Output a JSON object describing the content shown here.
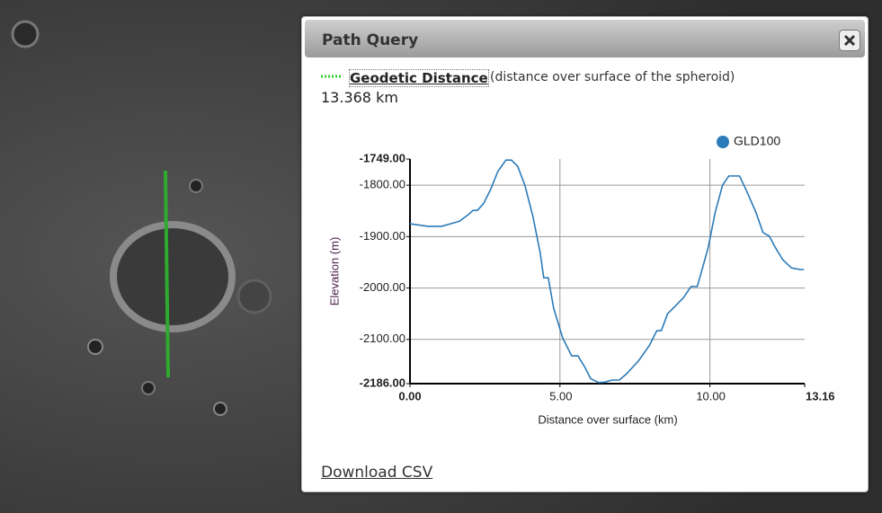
{
  "panel": {
    "title": "Path Query",
    "link": "Geodetic Distance",
    "description": "(distance over surface of the spheroid)",
    "distance": "13.368 km",
    "download": "Download CSV"
  },
  "chart_data": {
    "type": "line",
    "x_label": "Distance over surface (km)",
    "y_label": "Elevation (m)",
    "xlim": [
      0,
      13.16
    ],
    "xticks": [
      {
        "value": 0,
        "label": "0.00"
      },
      {
        "value": 5,
        "label": "5.00"
      },
      {
        "value": 10,
        "label": "10.00"
      },
      {
        "value": 13.16,
        "label": "13.16"
      }
    ],
    "ylim": [
      -2186,
      -1749
    ],
    "yticks": [
      {
        "value": -1749,
        "label": "-1749.00"
      },
      {
        "value": -1800,
        "label": "-1800.00"
      },
      {
        "value": -1900,
        "label": "-1900.00"
      },
      {
        "value": -2000,
        "label": "-2000.00"
      },
      {
        "value": -2100,
        "label": "-2100.00"
      },
      {
        "value": -2186,
        "label": "-2186.00"
      }
    ],
    "grid": true,
    "legend": "top-right",
    "x": [
      0,
      0.6,
      1.05,
      1.35,
      1.65,
      1.95,
      2.1,
      2.25,
      2.46,
      2.69,
      2.93,
      3.2,
      3.38,
      3.59,
      3.83,
      4.1,
      4.34,
      4.46,
      4.61,
      4.79,
      5.09,
      5.39,
      5.6,
      5.84,
      6.02,
      6.29,
      6.5,
      6.74,
      6.98,
      7.22,
      7.63,
      7.99,
      8.23,
      8.38,
      8.59,
      8.83,
      9.13,
      9.37,
      9.58,
      9.73,
      9.94,
      10.18,
      10.42,
      10.63,
      10.99,
      11.23,
      11.53,
      11.77,
      11.98,
      12.19,
      12.43,
      12.72,
      13.02,
      13.14
    ],
    "series": [
      {
        "name": "GLD100",
        "color": "#2b7bb9",
        "values": [
          -1875,
          -1880,
          -1880,
          -1875,
          -1870,
          -1857,
          -1849,
          -1849,
          -1835,
          -1808,
          -1773,
          -1751,
          -1751,
          -1763,
          -1800,
          -1861,
          -1931,
          -1980,
          -1980,
          -2039,
          -2097,
          -2132,
          -2132,
          -2155,
          -2176,
          -2184,
          -2183,
          -2179,
          -2179,
          -2167,
          -2141,
          -2111,
          -2083,
          -2083,
          -2050,
          -2036,
          -2018,
          -1997,
          -1997,
          -1966,
          -1922,
          -1852,
          -1800,
          -1782,
          -1782,
          -1812,
          -1852,
          -1892,
          -1899,
          -1922,
          -1945,
          -1961,
          -1964,
          -1964
        ]
      }
    ]
  }
}
